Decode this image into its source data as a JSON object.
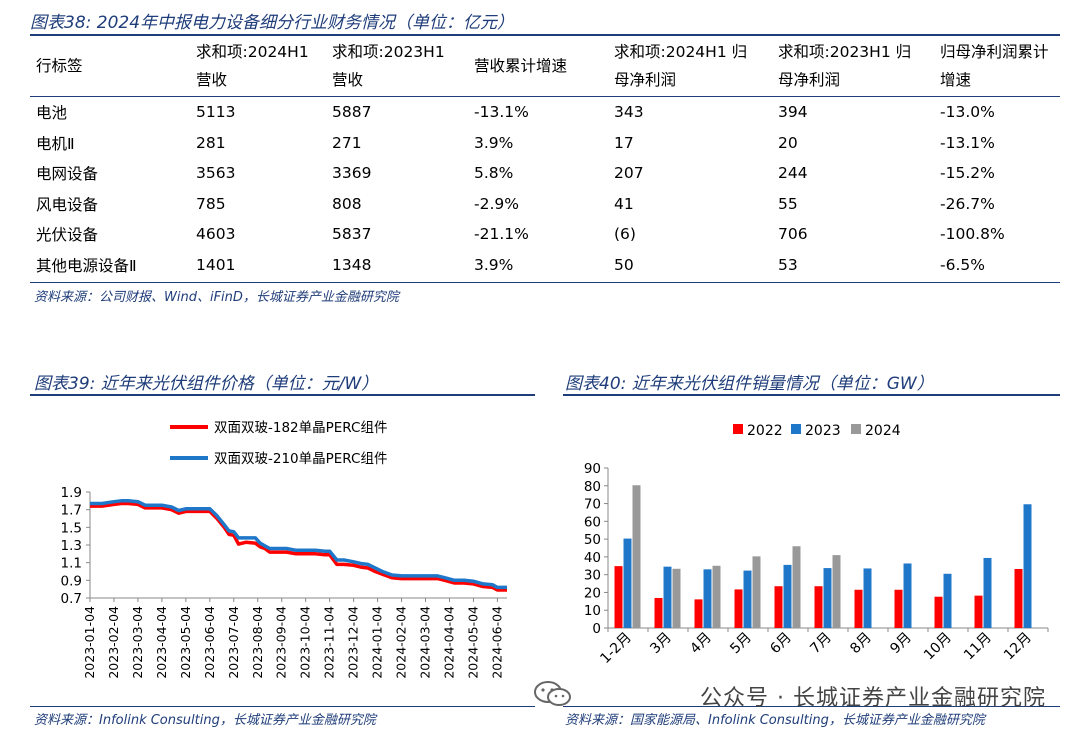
{
  "fig38": {
    "title": "图表38: 2024年中报电力设备细分行业财务情况（单位：亿元）",
    "headers": [
      "行标签",
      "求和项:2024H1营收",
      "求和项:2023H1营收",
      "营收累计增速",
      "求和项:2024H1归母净利润",
      "求和项:2023H1归母净利润",
      "归母净利润累计增速"
    ],
    "header_lines": [
      [
        "行标签"
      ],
      [
        "求和项:2024H1",
        "营收"
      ],
      [
        "求和项:2023H1",
        "营收"
      ],
      [
        "营收累计增速"
      ],
      [
        "求和项:2024H1 归",
        "母净利润"
      ],
      [
        "求和项:2023H1 归",
        "母净利润"
      ],
      [
        "归母净利润累计",
        "增速"
      ]
    ],
    "rows": [
      [
        "电池",
        "5113",
        "5887",
        "-13.1%",
        "343",
        "394",
        "-13.0%"
      ],
      [
        "电机Ⅱ",
        "281",
        "271",
        "3.9%",
        "17",
        "20",
        "-13.1%"
      ],
      [
        "电网设备",
        "3563",
        "3369",
        "5.8%",
        "207",
        "244",
        "-15.2%"
      ],
      [
        "风电设备",
        "785",
        "808",
        "-2.9%",
        "41",
        "55",
        "-26.7%"
      ],
      [
        "光伏设备",
        "4603",
        "5837",
        "-21.1%",
        "(6)",
        "706",
        "-100.8%"
      ],
      [
        "其他电源设备Ⅱ",
        "1401",
        "1348",
        "3.9%",
        "50",
        "53",
        "-6.5%"
      ]
    ],
    "source": "资料来源：公司财报、Wind、iFinD，长城证券产业金融研究院"
  },
  "fig39": {
    "title": "图表39: 近年来光伏组件价格（单位：元/W）",
    "source": "资料来源：Infolink Consulting，长城证券产业金融研究院"
  },
  "fig40": {
    "title": "图表40: 近年来光伏组件销量情况（单位：GW）",
    "source": "资料来源：国家能源局、Infolink Consulting，长城证券产业金融研究院"
  },
  "watermark": "公众号 · 长城证券产业金融研究院",
  "chart_data": [
    {
      "type": "line",
      "title": "图表39: 近年来光伏组件价格（单位：元/W）",
      "xlabel": "",
      "ylabel": "",
      "x_ticks": [
        "2023-01-04",
        "2023-02-04",
        "2023-03-04",
        "2023-04-04",
        "2023-05-04",
        "2023-06-04",
        "2023-07-04",
        "2023-08-04",
        "2023-09-04",
        "2023-10-04",
        "2023-11-04",
        "2023-12-04",
        "2024-01-04",
        "2024-02-04",
        "2024-03-04",
        "2024-04-04",
        "2024-05-04",
        "2024-06-04"
      ],
      "y_ticks": [
        0.7,
        0.9,
        1.1,
        1.3,
        1.5,
        1.7,
        1.9
      ],
      "ylim": [
        0.7,
        1.9
      ],
      "legend_position": "top-left",
      "series": [
        {
          "name": "双面双玻-182单晶PERC组件",
          "color": "#ff0000",
          "x": [
            0,
            0.5,
            1,
            1.3,
            1.6,
            2,
            2.3,
            2.7,
            3,
            3.4,
            3.7,
            4,
            4.4,
            4.8,
            5,
            5.3,
            5.6,
            5.8,
            6,
            6.2,
            6.5,
            6.9,
            7.1,
            7.3,
            7.5,
            7.8,
            8.2,
            8.6,
            9,
            9.4,
            9.8,
            10,
            10.3,
            10.6,
            11,
            11.3,
            11.6,
            11.9,
            12.2,
            12.6,
            13,
            13.4,
            13.8,
            14.2,
            14.5,
            14.8,
            15.2,
            15.6,
            16,
            16.4,
            16.8,
            17,
            17.4
          ],
          "values": [
            1.74,
            1.74,
            1.76,
            1.77,
            1.77,
            1.76,
            1.72,
            1.72,
            1.72,
            1.7,
            1.66,
            1.68,
            1.68,
            1.68,
            1.68,
            1.6,
            1.5,
            1.42,
            1.41,
            1.31,
            1.33,
            1.32,
            1.28,
            1.26,
            1.22,
            1.22,
            1.22,
            1.2,
            1.2,
            1.2,
            1.19,
            1.19,
            1.08,
            1.08,
            1.07,
            1.05,
            1.04,
            1.0,
            0.97,
            0.93,
            0.92,
            0.92,
            0.92,
            0.92,
            0.92,
            0.9,
            0.87,
            0.87,
            0.86,
            0.83,
            0.82,
            0.79,
            0.79
          ]
        },
        {
          "name": "双面双玻-210单晶PERC组件",
          "color": "#1f77c9",
          "x": [
            0,
            0.5,
            1,
            1.3,
            1.6,
            2,
            2.3,
            2.7,
            3,
            3.4,
            3.7,
            4,
            4.4,
            4.8,
            5,
            5.3,
            5.6,
            5.8,
            6,
            6.2,
            6.5,
            6.9,
            7.1,
            7.3,
            7.5,
            7.8,
            8.2,
            8.6,
            9,
            9.4,
            9.8,
            10,
            10.3,
            10.6,
            11,
            11.3,
            11.6,
            11.9,
            12.2,
            12.6,
            13,
            13.4,
            13.8,
            14.2,
            14.5,
            14.8,
            15.2,
            15.6,
            16,
            16.4,
            16.8,
            17,
            17.4
          ],
          "values": [
            1.77,
            1.77,
            1.79,
            1.8,
            1.8,
            1.79,
            1.75,
            1.75,
            1.75,
            1.73,
            1.69,
            1.71,
            1.71,
            1.71,
            1.71,
            1.63,
            1.53,
            1.46,
            1.45,
            1.38,
            1.38,
            1.38,
            1.32,
            1.29,
            1.26,
            1.26,
            1.26,
            1.24,
            1.24,
            1.24,
            1.23,
            1.23,
            1.13,
            1.13,
            1.11,
            1.09,
            1.08,
            1.04,
            1.0,
            0.96,
            0.95,
            0.95,
            0.95,
            0.95,
            0.95,
            0.93,
            0.9,
            0.9,
            0.89,
            0.86,
            0.85,
            0.82,
            0.82
          ]
        }
      ]
    },
    {
      "type": "bar",
      "title": "图表40: 近年来光伏组件销量情况（单位：GW）",
      "xlabel": "",
      "ylabel": "",
      "categories": [
        "1-2月",
        "3月",
        "4月",
        "5月",
        "6月",
        "7月",
        "8月",
        "9月",
        "10月",
        "11月",
        "12月"
      ],
      "ylim": [
        0,
        90
      ],
      "y_ticks": [
        0,
        10,
        20,
        30,
        40,
        50,
        60,
        70,
        80,
        90
      ],
      "legend_position": "top",
      "series": [
        {
          "name": "2022",
          "color": "#ff0000",
          "values": [
            34.8,
            16.9,
            16.1,
            21.7,
            23.5,
            23.5,
            21.5,
            21.5,
            17.6,
            18.2,
            33.2
          ]
        },
        {
          "name": "2023",
          "color": "#1f77c9",
          "values": [
            50.3,
            34.5,
            33.0,
            32.3,
            35.5,
            33.7,
            33.5,
            36.3,
            30.5,
            39.4,
            69.6
          ]
        },
        {
          "name": "2024",
          "color": "#999999",
          "values": [
            80.3,
            33.3,
            35.0,
            40.3,
            46.0,
            41.0,
            null,
            null,
            null,
            null,
            null
          ]
        }
      ]
    }
  ]
}
